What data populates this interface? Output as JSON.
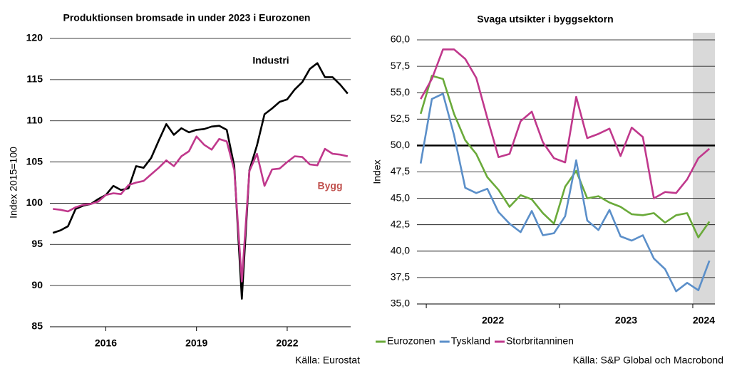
{
  "chart_data": [
    {
      "type": "line",
      "title": "Produktionsen bromsade in under 2023 i Eurozonen",
      "ylabel": "Index 2015=100",
      "source": "Källa: Eurostat",
      "x": [
        2014.25,
        2014.5,
        2014.75,
        2015,
        2015.25,
        2015.5,
        2015.75,
        2016,
        2016.25,
        2016.5,
        2016.75,
        2017,
        2017.25,
        2017.5,
        2017.75,
        2018,
        2018.25,
        2018.5,
        2018.75,
        2019,
        2019.25,
        2019.5,
        2019.75,
        2020,
        2020.25,
        2020.5,
        2020.75,
        2021,
        2021.25,
        2021.5,
        2021.75,
        2022,
        2022.25,
        2022.5,
        2022.75,
        2023,
        2023.25,
        2023.5,
        2023.75,
        2024
      ],
      "series": [
        {
          "name": "Industri",
          "color": "#000000",
          "label_color": "#000000",
          "values": [
            96.4,
            96.7,
            97.2,
            99.3,
            99.7,
            99.9,
            100.5,
            101.0,
            102.1,
            101.6,
            101.8,
            104.5,
            104.3,
            105.5,
            107.6,
            109.6,
            108.3,
            109.1,
            108.6,
            108.9,
            109.0,
            109.3,
            109.4,
            108.9,
            104.5,
            88.4,
            104.0,
            107.0,
            110.8,
            111.5,
            112.3,
            112.6,
            113.8,
            114.7,
            116.3,
            117.0,
            115.3,
            115.3,
            114.4,
            113.3
          ]
        },
        {
          "name": "Bygg",
          "color": "#c0388c",
          "label_color": "#c0504d",
          "values": [
            99.3,
            99.2,
            99.0,
            99.5,
            99.8,
            99.9,
            100.2,
            101.0,
            101.2,
            101.1,
            102.2,
            102.5,
            102.7,
            103.5,
            104.3,
            105.2,
            104.5,
            105.7,
            106.3,
            108.1,
            107.1,
            106.5,
            107.8,
            107.5,
            104.0,
            90.5,
            103.9,
            106.0,
            102.1,
            104.1,
            104.2,
            105.0,
            105.7,
            105.6,
            104.7,
            104.6,
            106.6,
            106.0,
            105.9,
            105.7
          ]
        }
      ],
      "xlim": [
        2014.15,
        2024.1
      ],
      "xticks": [
        2016,
        2019,
        2022
      ],
      "ylim": [
        85,
        120
      ],
      "yticks": [
        85,
        90,
        95,
        100,
        105,
        110,
        115,
        120
      ],
      "grid": true
    },
    {
      "type": "line",
      "title": "Svaga utsikter i byggsektorn",
      "ylabel": "Index",
      "source": "Källa: S&P Global och Macrobond",
      "x": [
        2021.958,
        2022.042,
        2022.125,
        2022.208,
        2022.292,
        2022.375,
        2022.458,
        2022.542,
        2022.625,
        2022.708,
        2022.792,
        2022.875,
        2022.958,
        2023.042,
        2023.125,
        2023.208,
        2023.292,
        2023.375,
        2023.458,
        2023.542,
        2023.625,
        2023.708,
        2023.792,
        2023.875,
        2023.958,
        2024.042,
        2024.125
      ],
      "series": [
        {
          "name": "Eurozonen",
          "color": "#6aaa3a",
          "values": [
            53.0,
            56.6,
            56.3,
            53.0,
            50.5,
            49.2,
            47.0,
            45.8,
            44.2,
            45.3,
            44.9,
            43.6,
            42.6,
            46.1,
            47.6,
            45.0,
            45.2,
            44.6,
            44.2,
            43.5,
            43.4,
            43.6,
            42.7,
            43.4,
            43.6,
            41.3,
            42.8
          ]
        },
        {
          "name": "Tyskland",
          "color": "#5b8fc9",
          "values": [
            48.3,
            54.4,
            54.9,
            51.0,
            46.0,
            45.5,
            45.9,
            43.7,
            42.6,
            41.8,
            43.8,
            41.5,
            41.7,
            43.3,
            48.6,
            42.9,
            42.0,
            43.9,
            41.4,
            41.0,
            41.5,
            39.3,
            38.3,
            36.2,
            37.0,
            36.3,
            39.1
          ]
        },
        {
          "name": "Storbritanninen",
          "color": "#c0388c",
          "values": [
            54.4,
            56.3,
            59.1,
            59.1,
            58.2,
            56.4,
            52.6,
            48.9,
            49.2,
            52.3,
            53.2,
            50.3,
            48.8,
            48.4,
            54.6,
            50.7,
            51.1,
            51.6,
            49.0,
            51.7,
            50.8,
            45.0,
            45.6,
            45.5,
            46.8,
            48.8,
            49.7
          ]
        }
      ],
      "xlim": [
        2021.93,
        2024.166
      ],
      "xticks": [
        2022,
        2023,
        2024
      ],
      "ylim": [
        35,
        60
      ],
      "yticks": [
        {
          "value": 35,
          "label": "35,0"
        },
        {
          "value": 37.5,
          "label": "37,5"
        },
        {
          "value": 40,
          "label": "40,0"
        },
        {
          "value": 42.5,
          "label": "42,5"
        },
        {
          "value": 45,
          "label": "45,0"
        },
        {
          "value": 47.5,
          "label": "47,5"
        },
        {
          "value": 50,
          "label": "50,0"
        },
        {
          "value": 52.5,
          "label": "52,5"
        },
        {
          "value": 55,
          "label": "55,0"
        },
        {
          "value": 57.5,
          "label": "57,5"
        },
        {
          "value": 60,
          "label": "60,0"
        }
      ],
      "grid": true,
      "reference_line": 50,
      "shade_from": 2024,
      "shade_color": "#d9d9d9",
      "legend": "bottom"
    }
  ]
}
